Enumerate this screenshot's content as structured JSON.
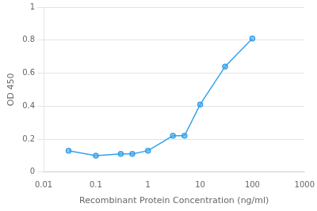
{
  "chart_data": {
    "type": "line",
    "xlabel": "Recombinant Protein Concentration (ng/ml)",
    "ylabel": "OD 450",
    "x": [
      0.03,
      0.1,
      0.3,
      0.5,
      1.0,
      3.0,
      5.0,
      10.0,
      30.0,
      100.0
    ],
    "values": [
      0.13,
      0.1,
      0.11,
      0.11,
      0.13,
      0.22,
      0.22,
      0.41,
      0.64,
      0.81
    ],
    "log": "x",
    "xlim": [
      0.01,
      1000
    ],
    "xticks": [
      0.01,
      0.1,
      1,
      10,
      100,
      1000
    ],
    "ylim": [
      0,
      1.0
    ],
    "yticks": [
      0,
      0.2,
      0.4,
      0.6,
      0.8,
      1
    ],
    "grid": "y",
    "marker": "circle"
  }
}
